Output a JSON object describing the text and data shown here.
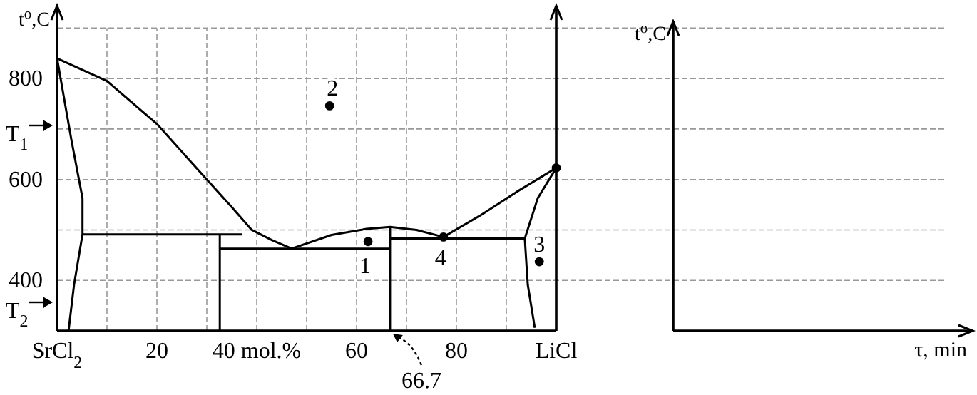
{
  "chart_data": [
    {
      "type": "line",
      "ylabel": "t$^{o}$,C",
      "xlim": [
        0,
        100
      ],
      "ylim": [
        300,
        950
      ],
      "xticks": [
        {
          "value": 0,
          "label": null
        },
        {
          "value": 10,
          "label": null
        },
        20,
        {
          "value": 30,
          "label": null
        },
        {
          "value": 40,
          "label": "40 mol.%"
        },
        {
          "value": 50,
          "label": null
        },
        60,
        {
          "value": 70,
          "label": null
        },
        80,
        {
          "value": 90,
          "label": null
        },
        {
          "value": 100,
          "label": null
        }
      ],
      "yticks": [
        400,
        {
          "value": 500,
          "label": null
        },
        600,
        {
          "value": 700,
          "label": null
        },
        800,
        {
          "value": 900,
          "label": null
        }
      ],
      "grid": true,
      "series": [
        {
          "color": "#000000",
          "x": [
            2.3,
            3.4,
            5.1,
            5.1,
            2.9,
            0,
            10,
            20,
            30,
            35,
            39,
            43,
            47,
            55,
            62,
            66.7,
            72,
            77.4,
            85,
            92,
            100,
            96.3,
            93.7,
            94.3,
            95.7
          ],
          "values": [
            300,
            391,
            491,
            563,
            677,
            840,
            795,
            710,
            600,
            545,
            500,
            480,
            463,
            490,
            502,
            506,
            500,
            486,
            530,
            575,
            623,
            563,
            483,
            391,
            306
          ]
        },
        {
          "color": "#000000",
          "x": [
            5.1,
            37
          ],
          "values": [
            491,
            491
          ]
        },
        {
          "color": "#000000",
          "x": [
            32.6,
            32.6
          ],
          "values": [
            491,
            300
          ]
        },
        {
          "color": "#000000",
          "x": [
            32.6,
            66.7
          ],
          "values": [
            463,
            463
          ]
        },
        {
          "color": "#000000",
          "x": [
            66.7,
            66.7
          ],
          "values": [
            506,
            300
          ]
        },
        {
          "color": "#000000",
          "x": [
            66.7,
            93.7
          ],
          "values": [
            483,
            483
          ]
        },
        {
          "type": "scatter",
          "marker": "circle",
          "color": "#000000",
          "x": [
            54.6,
            62.3,
            77.4,
            96.6,
            100
          ],
          "values": [
            746,
            477,
            486,
            437,
            623
          ]
        }
      ],
      "annotations": [
        "SrCl$_{2}$",
        "LiCl",
        "T$_{1}$",
        "T$_{2}$",
        {
          "text": "1",
          "x": 62.3,
          "y": 477
        },
        {
          "text": "2",
          "x": 54.6,
          "y": 746
        },
        {
          "text": "3",
          "x": 96.6,
          "y": 437
        },
        {
          "text": "4",
          "x": 77.4,
          "y": 486
        },
        {
          "text": "66.7",
          "x": 66.7,
          "y": 300
        }
      ]
    },
    {
      "type": "other",
      "xlabel": "τ, min",
      "ylabel": "t$^{o}$,C"
    }
  ]
}
